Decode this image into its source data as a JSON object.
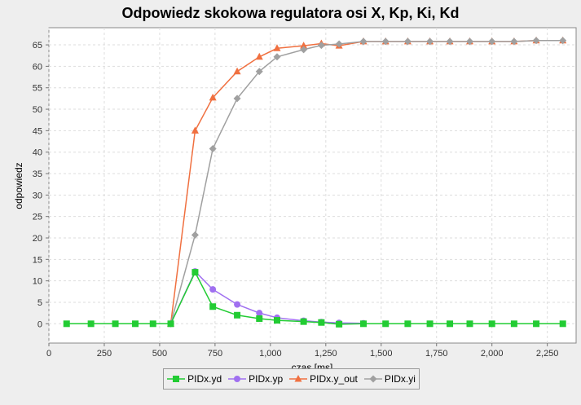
{
  "chart_data": {
    "type": "line",
    "title": "Odpowiedz skokowa regulatora osi X,  Kp, Ki,  Kd",
    "xlabel": "czas [ms]",
    "ylabel": "odpowiedz",
    "xlim": [
      0,
      2380
    ],
    "ylim": [
      -4.5,
      69
    ],
    "xticks": [
      0,
      250,
      500,
      750,
      1000,
      1250,
      1500,
      1750,
      2000,
      2250
    ],
    "xtick_labels": [
      "0",
      "250",
      "500",
      "750",
      "1,000",
      "1,250",
      "1,500",
      "1,750",
      "2,000",
      "2,250"
    ],
    "yticks": [
      0,
      5,
      10,
      15,
      20,
      25,
      30,
      35,
      40,
      45,
      50,
      55,
      60,
      65
    ],
    "ytick_labels": [
      "0",
      "5",
      "10",
      "15",
      "20",
      "25",
      "30",
      "35",
      "40",
      "45",
      "50",
      "55",
      "60",
      "65"
    ],
    "grid": true,
    "legend_position": "bottom",
    "series": [
      {
        "name": "PIDx.yd",
        "color": "#22cc33",
        "marker": "square",
        "x": [
          80,
          190,
          300,
          390,
          470,
          550,
          660,
          740,
          850,
          950,
          1030,
          1150,
          1230,
          1310,
          1420,
          1520,
          1620,
          1720,
          1810,
          1900,
          2000,
          2100,
          2200,
          2320
        ],
        "y": [
          0,
          0,
          0,
          0,
          0,
          0,
          12,
          4,
          2,
          1.2,
          0.8,
          0.5,
          0.3,
          -0.1,
          0,
          0,
          0,
          0,
          0,
          0,
          0,
          0,
          0,
          0
        ]
      },
      {
        "name": "PIDx.yp",
        "color": "#a070f0",
        "marker": "circle",
        "x": [
          550,
          660,
          740,
          850,
          950,
          1030,
          1150,
          1230,
          1310,
          1420
        ],
        "y": [
          0,
          12.2,
          8,
          4.5,
          2.5,
          1.4,
          0.7,
          0.4,
          0.2,
          0.1
        ]
      },
      {
        "name": "PIDx.y_out",
        "color": "#f07040",
        "marker": "triangle",
        "x": [
          550,
          660,
          740,
          850,
          950,
          1030,
          1150,
          1230,
          1310,
          1420,
          1520,
          1620,
          1720,
          1810,
          1900,
          2000,
          2100,
          2200,
          2320
        ],
        "y": [
          0,
          45,
          52.7,
          58.8,
          62.2,
          64.2,
          64.8,
          65.3,
          64.8,
          65.8,
          65.8,
          65.8,
          65.8,
          65.8,
          65.8,
          65.8,
          65.8,
          66,
          66
        ]
      },
      {
        "name": "PIDx.yi",
        "color": "#a0a0a0",
        "marker": "diamond",
        "x": [
          550,
          660,
          740,
          850,
          950,
          1030,
          1150,
          1230,
          1310,
          1420,
          1520,
          1620,
          1720,
          1810,
          1900,
          2000,
          2100,
          2200,
          2320
        ],
        "y": [
          0,
          20.7,
          40.8,
          52.5,
          58.8,
          62.2,
          63.9,
          64.9,
          65.2,
          65.8,
          65.8,
          65.8,
          65.8,
          65.8,
          65.8,
          65.8,
          65.8,
          66,
          66
        ]
      }
    ]
  }
}
